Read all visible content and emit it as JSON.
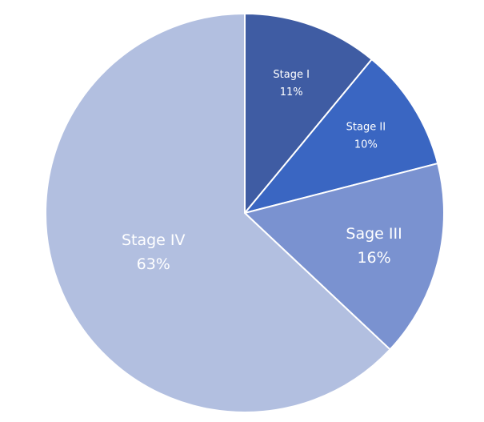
{
  "chart_data": {
    "type": "pie",
    "categories": [
      "Stage I",
      "Stage II",
      "Sage III",
      "Stage IV"
    ],
    "values": [
      11,
      10,
      16,
      63
    ],
    "value_labels": [
      "11%",
      "10%",
      "16%",
      "63%"
    ],
    "colors": [
      "#3f5ca3",
      "#3a66c2",
      "#7a92d0",
      "#b2bfe0"
    ]
  }
}
